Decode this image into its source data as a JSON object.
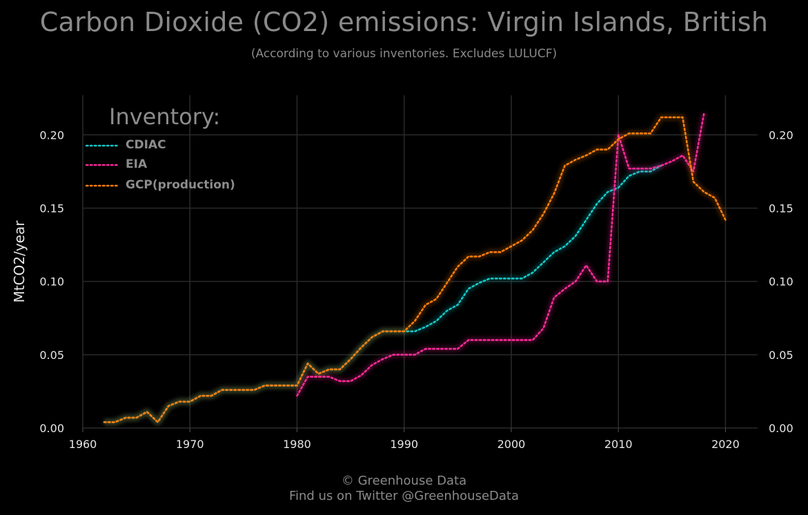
{
  "title": "Carbon Dioxide (CO2) emissions: Virgin Islands, British",
  "subtitle": "(According to various inventories. Excludes LULUCF)",
  "footer": {
    "line1": "© Greenhouse Data",
    "line2": "Find us on Twitter @GreenhouseData"
  },
  "colors": {
    "background": "#000000",
    "grid": "#2a2a2a",
    "text": "#8c8c8c",
    "tick_text": "#e6e6e6",
    "CDIAC": "#18c8c8",
    "EIA": "#ff2b9a",
    "GCP(production)": "#ff7f0e"
  },
  "legend": {
    "title": "Inventory:",
    "items": [
      {
        "label": "CDIAC"
      },
      {
        "label": "EIA"
      },
      {
        "label": "GCP(production)"
      }
    ]
  },
  "chart_data": {
    "type": "line",
    "ylabel": "MtCO2/year",
    "xlabel": "",
    "xlim": [
      1960,
      2023
    ],
    "ylim": [
      0,
      0.227
    ],
    "x_ticks": [
      1960,
      1970,
      1980,
      1990,
      2000,
      2010,
      2020
    ],
    "y_ticks": [
      0.0,
      0.05,
      0.1,
      0.15,
      0.2
    ],
    "y_tick_labels": [
      "0.00",
      "0.05",
      "0.10",
      "0.15",
      "0.20"
    ],
    "grid": true,
    "legend_position": "top-left",
    "series": [
      {
        "name": "CDIAC",
        "x": [
          1962,
          1963,
          1964,
          1965,
          1966,
          1967,
          1968,
          1969,
          1970,
          1971,
          1972,
          1973,
          1974,
          1975,
          1976,
          1977,
          1978,
          1979,
          1980,
          1981,
          1982,
          1983,
          1984,
          1985,
          1986,
          1987,
          1988,
          1989,
          1990,
          1991,
          1992,
          1993,
          1994,
          1995,
          1996,
          1997,
          1998,
          1999,
          2000,
          2001,
          2002,
          2003,
          2004,
          2005,
          2006,
          2007,
          2008,
          2009,
          2010,
          2011,
          2012,
          2013,
          2014
        ],
        "values": [
          0.004,
          0.004,
          0.007,
          0.007,
          0.011,
          0.004,
          0.015,
          0.018,
          0.018,
          0.022,
          0.022,
          0.026,
          0.026,
          0.026,
          0.026,
          0.029,
          0.029,
          0.029,
          0.029,
          0.044,
          0.037,
          0.04,
          0.04,
          0.047,
          0.055,
          0.062,
          0.066,
          0.066,
          0.066,
          0.066,
          0.069,
          0.073,
          0.08,
          0.084,
          0.095,
          0.099,
          0.102,
          0.102,
          0.102,
          0.102,
          0.106,
          0.113,
          0.12,
          0.124,
          0.131,
          0.142,
          0.153,
          0.161,
          0.164,
          0.172,
          0.175,
          0.175,
          0.179
        ]
      },
      {
        "name": "EIA",
        "x": [
          1980,
          1981,
          1982,
          1983,
          1984,
          1985,
          1986,
          1987,
          1988,
          1989,
          1990,
          1991,
          1992,
          1993,
          1994,
          1995,
          1996,
          1997,
          1998,
          1999,
          2000,
          2001,
          2002,
          2003,
          2004,
          2005,
          2006,
          2007,
          2008,
          2009,
          2010,
          2011,
          2012,
          2013,
          2014,
          2015,
          2016,
          2017,
          2018
        ],
        "values": [
          0.022,
          0.035,
          0.035,
          0.035,
          0.032,
          0.032,
          0.036,
          0.043,
          0.047,
          0.05,
          0.05,
          0.05,
          0.054,
          0.054,
          0.054,
          0.054,
          0.06,
          0.06,
          0.06,
          0.06,
          0.06,
          0.06,
          0.06,
          0.068,
          0.089,
          0.095,
          0.1,
          0.111,
          0.1,
          0.1,
          0.2,
          0.177,
          0.177,
          0.177,
          0.179,
          0.182,
          0.186,
          0.175,
          0.215
        ]
      },
      {
        "name": "GCP(production)",
        "x": [
          1962,
          1963,
          1964,
          1965,
          1966,
          1967,
          1968,
          1969,
          1970,
          1971,
          1972,
          1973,
          1974,
          1975,
          1976,
          1977,
          1978,
          1979,
          1980,
          1981,
          1982,
          1983,
          1984,
          1985,
          1986,
          1987,
          1988,
          1989,
          1990,
          1991,
          1992,
          1993,
          1994,
          1995,
          1996,
          1997,
          1998,
          1999,
          2000,
          2001,
          2002,
          2003,
          2004,
          2005,
          2006,
          2007,
          2008,
          2009,
          2010,
          2011,
          2012,
          2013,
          2014,
          2015,
          2016,
          2017,
          2018,
          2019,
          2020
        ],
        "values": [
          0.004,
          0.004,
          0.007,
          0.007,
          0.011,
          0.004,
          0.015,
          0.018,
          0.018,
          0.022,
          0.022,
          0.026,
          0.026,
          0.026,
          0.026,
          0.029,
          0.029,
          0.029,
          0.029,
          0.044,
          0.037,
          0.04,
          0.04,
          0.047,
          0.055,
          0.062,
          0.066,
          0.066,
          0.066,
          0.073,
          0.084,
          0.088,
          0.099,
          0.11,
          0.117,
          0.117,
          0.12,
          0.12,
          0.124,
          0.128,
          0.135,
          0.146,
          0.16,
          0.179,
          0.183,
          0.186,
          0.19,
          0.19,
          0.197,
          0.201,
          0.201,
          0.201,
          0.212,
          0.212,
          0.212,
          0.168,
          0.161,
          0.157,
          0.142
        ]
      }
    ]
  }
}
